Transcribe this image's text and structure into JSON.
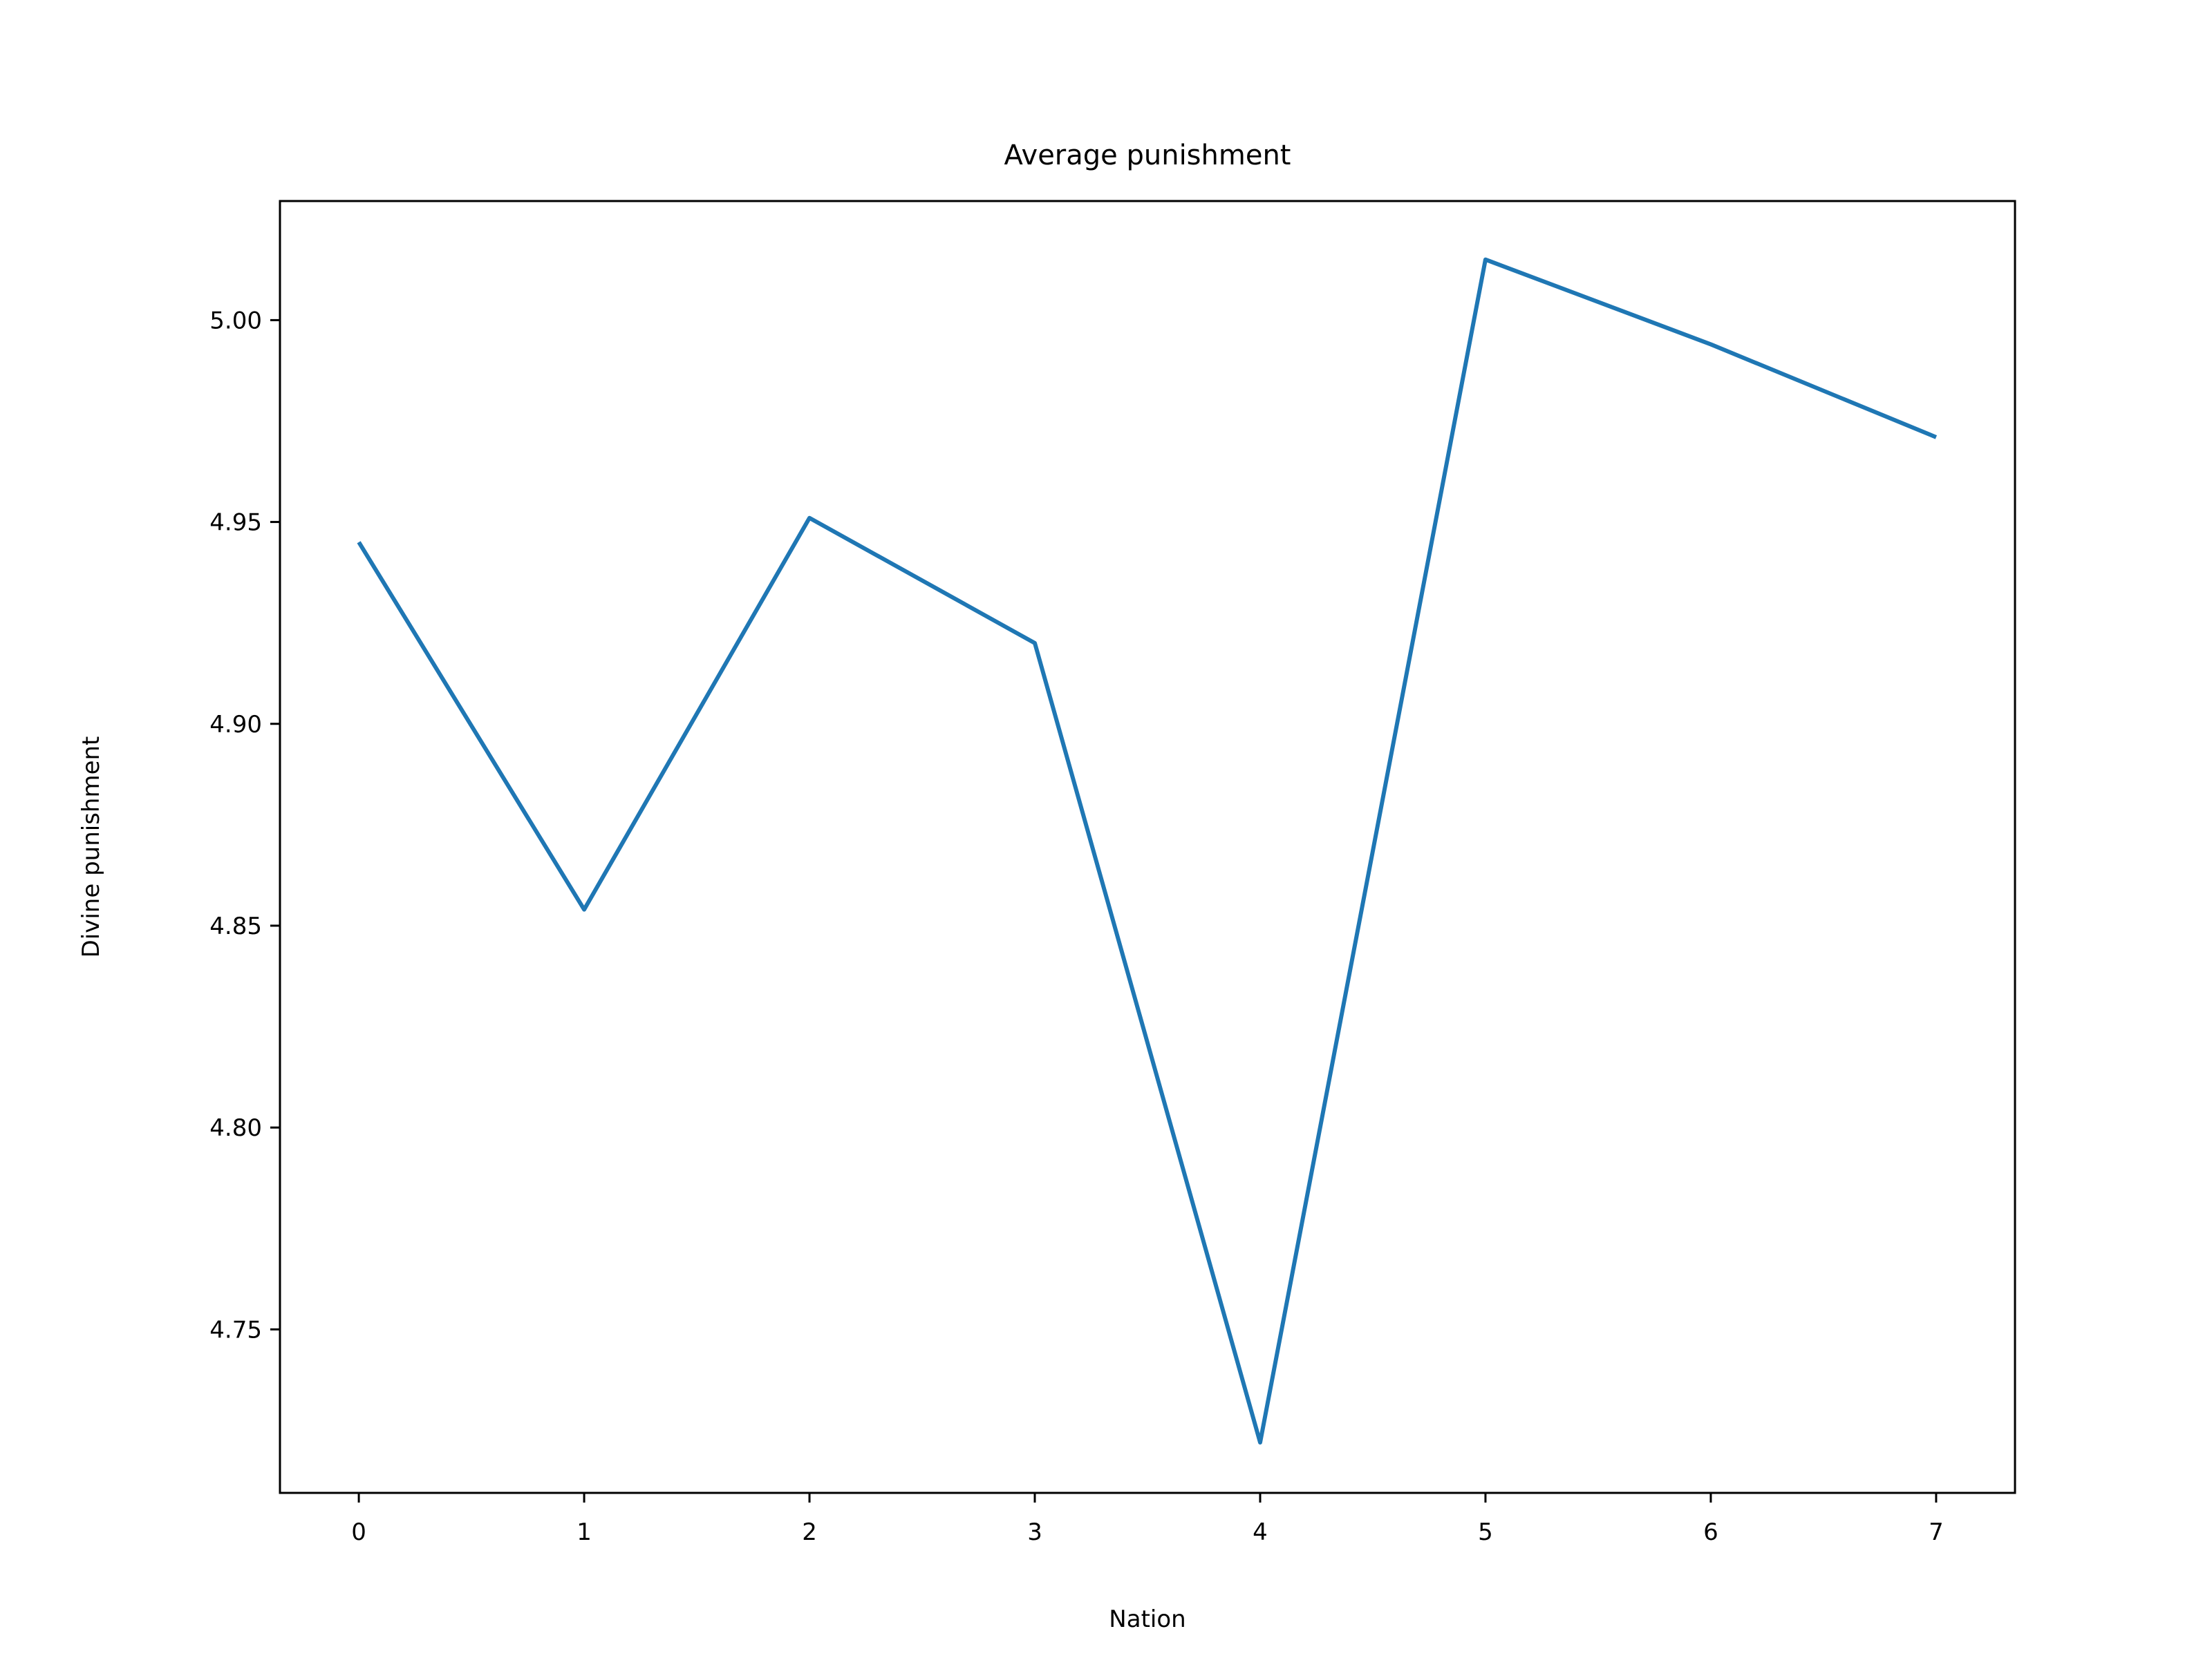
{
  "chart_data": {
    "type": "line",
    "title": "Average punishment",
    "xlabel": "Nation",
    "ylabel": "Divine punishment",
    "x": [
      0,
      1,
      2,
      3,
      4,
      5,
      6,
      7
    ],
    "series": [
      {
        "values": [
          4.945,
          4.854,
          4.951,
          4.92,
          4.722,
          5.015,
          4.994,
          4.971
        ]
      }
    ],
    "xlim": [
      -0.35,
      7.35
    ],
    "ylim": [
      4.7095,
      5.0295
    ],
    "xticks": [
      0,
      1,
      2,
      3,
      4,
      5,
      6,
      7
    ],
    "xtick_labels": [
      "0",
      "1",
      "2",
      "3",
      "4",
      "5",
      "6",
      "7"
    ],
    "yticks": [
      4.75,
      4.8,
      4.85,
      4.9,
      4.95,
      5.0
    ],
    "ytick_labels": [
      "4.75",
      "4.80",
      "4.85",
      "4.90",
      "4.95",
      "5.00"
    ],
    "grid": false,
    "colors": {
      "line": "#1f77b4",
      "axes": "#000000",
      "background": "#ffffff"
    }
  }
}
